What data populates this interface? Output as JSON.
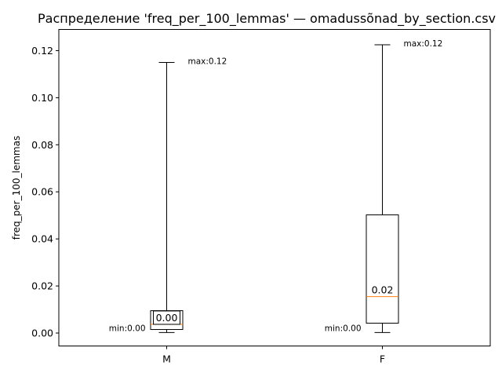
{
  "chart_data": {
    "type": "box",
    "title": "Распределение 'freq_per_100_lemmas' — omadussõnad_by_section.csv",
    "xlabel": "",
    "ylabel": "freq_per_100_lemmas",
    "ylim": [
      -0.0055,
      0.129
    ],
    "yticks": [
      0.0,
      0.02,
      0.04,
      0.06,
      0.08,
      0.1,
      0.12
    ],
    "ytick_labels": [
      "0.00",
      "0.02",
      "0.04",
      "0.06",
      "0.08",
      "0.10",
      "0.12"
    ],
    "grid": false,
    "median_color": "#ff7f0e",
    "categories": [
      "M",
      "F"
    ],
    "boxes": [
      {
        "category": "M",
        "whisker_low": 0.0002,
        "q1": 0.0015,
        "median": 0.0037,
        "q3": 0.0095,
        "whisker_high": 0.115,
        "median_label": "0.00",
        "median_label_boxed": true,
        "min_label": "min:0.00",
        "max_label": "max:0.12"
      },
      {
        "category": "F",
        "whisker_low": 0.0002,
        "q1": 0.0042,
        "median": 0.0155,
        "q3": 0.0502,
        "whisker_high": 0.1225,
        "median_label": "0.02",
        "median_label_boxed": false,
        "min_label": "min:0.00",
        "max_label": "max:0.12"
      }
    ]
  }
}
